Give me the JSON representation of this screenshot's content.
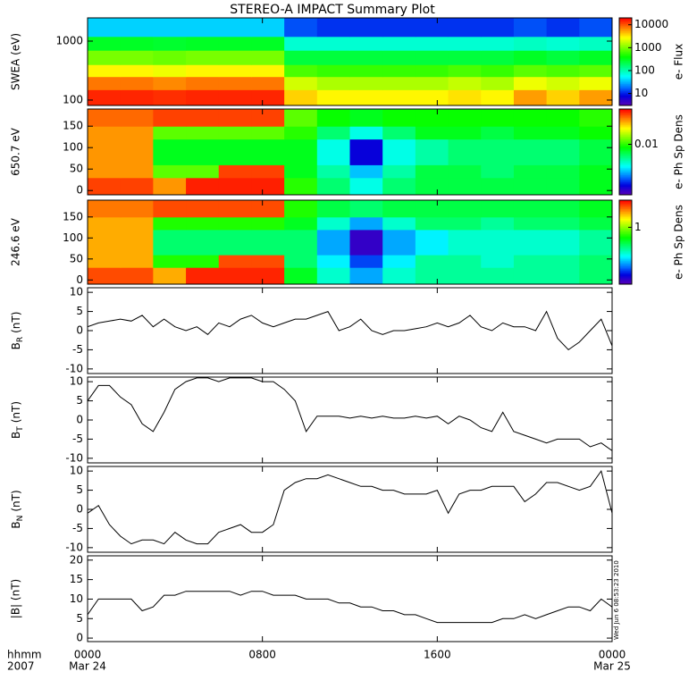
{
  "title": "STEREO-A IMPACT Summary Plot",
  "timestamp": "Wed Jun  6 08:53:23 2010",
  "x_axis": {
    "xlim": [
      0,
      24
    ],
    "xticks": [
      {
        "value": 0,
        "label": "0000"
      },
      {
        "value": 8,
        "label": "0800"
      },
      {
        "value": 16,
        "label": "1600"
      },
      {
        "value": 24,
        "label": "0000"
      }
    ],
    "row_labels": [
      "hhmm",
      "2007"
    ],
    "date_labels": [
      {
        "value": 0,
        "label": "Mar 24"
      },
      {
        "value": 24,
        "label": "Mar 25"
      }
    ]
  },
  "chart_data": [
    {
      "type": "heatmap",
      "ylabel": "SWEA (eV)",
      "ylog": true,
      "ylim": [
        81,
        2480
      ],
      "yticks": [
        100,
        1000
      ],
      "xbins": [
        0,
        1.5,
        3,
        4.5,
        6,
        7.5,
        9,
        10.5,
        12,
        13.5,
        15,
        16.5,
        18,
        19.5,
        21,
        22.5,
        24
      ],
      "ybins": [
        81,
        150,
        250,
        400,
        700,
        1200,
        2480
      ],
      "values": [
        [
          15000,
          15000,
          14000,
          15000,
          15000,
          15000,
          4000,
          3000,
          3000,
          3000,
          3000,
          3500,
          3000,
          6000,
          4000,
          6000
        ],
        [
          8000,
          8000,
          7000,
          8000,
          8000,
          8000,
          2000,
          1500,
          1500,
          1500,
          1500,
          1800,
          1500,
          2500,
          2000,
          2500
        ],
        [
          3000,
          3000,
          2500,
          3000,
          3000,
          3000,
          700,
          600,
          600,
          600,
          600,
          700,
          600,
          800,
          700,
          800
        ],
        [
          1000,
          1000,
          900,
          1000,
          1000,
          1000,
          250,
          250,
          250,
          250,
          250,
          250,
          250,
          300,
          250,
          300
        ],
        [
          300,
          300,
          280,
          300,
          300,
          300,
          80,
          80,
          80,
          80,
          80,
          80,
          80,
          90,
          80,
          90
        ],
        [
          40,
          40,
          40,
          40,
          40,
          40,
          15,
          12,
          12,
          12,
          12,
          12,
          12,
          15,
          12,
          15
        ]
      ],
      "colorbar": {
        "log": true,
        "clim": [
          3,
          20000
        ],
        "cticks": [
          10,
          100,
          1000,
          10000
        ],
        "label": "e- Flux"
      }
    },
    {
      "type": "heatmap",
      "ylabel": "650.7 eV",
      "ylog": false,
      "ylim": [
        -10,
        190
      ],
      "yticks": [
        0,
        50,
        100,
        150
      ],
      "xbins": [
        0,
        1.5,
        3,
        4.5,
        6,
        7.5,
        9,
        10.5,
        12,
        13.5,
        15,
        16.5,
        18,
        19.5,
        21,
        22.5,
        24
      ],
      "ybins": [
        -10,
        30,
        60,
        120,
        150,
        190
      ],
      "values": [
        [
          0.04,
          0.04,
          0.03,
          0.045,
          0.045,
          0.045,
          0.01,
          0.006,
          0.004,
          0.006,
          0.007,
          0.007,
          0.007,
          0.007,
          0.007,
          0.008
        ],
        [
          0.03,
          0.03,
          0.012,
          0.012,
          0.04,
          0.04,
          0.008,
          0.005,
          0.003,
          0.005,
          0.007,
          0.007,
          0.006,
          0.007,
          0.007,
          0.008
        ],
        [
          0.03,
          0.03,
          0.008,
          0.008,
          0.008,
          0.008,
          0.008,
          0.004,
          0.0015,
          0.004,
          0.005,
          0.006,
          0.006,
          0.006,
          0.006,
          0.007
        ],
        [
          0.03,
          0.03,
          0.012,
          0.012,
          0.012,
          0.012,
          0.01,
          0.006,
          0.004,
          0.006,
          0.008,
          0.008,
          0.007,
          0.008,
          0.008,
          0.009
        ],
        [
          0.035,
          0.035,
          0.04,
          0.04,
          0.04,
          0.04,
          0.012,
          0.009,
          0.008,
          0.009,
          0.009,
          0.009,
          0.009,
          0.009,
          0.009,
          0.01
        ]
      ],
      "colorbar": {
        "log": true,
        "clim": [
          0.001,
          0.05
        ],
        "cticks": [
          0.01
        ],
        "label": "e- Ph Sp Dens"
      }
    },
    {
      "type": "heatmap",
      "ylabel": "246.6 eV",
      "ylog": false,
      "ylim": [
        -10,
        190
      ],
      "yticks": [
        0,
        50,
        100,
        150
      ],
      "xbins": [
        0,
        1.5,
        3,
        4.5,
        6,
        7.5,
        9,
        10.5,
        12,
        13.5,
        15,
        16.5,
        18,
        19.5,
        21,
        22.5,
        24
      ],
      "ybins": [
        -10,
        30,
        60,
        120,
        150,
        190
      ],
      "values": [
        [
          2.4,
          2.4,
          1.8,
          2.7,
          2.7,
          2.7,
          0.6,
          0.36,
          0.24,
          0.36,
          0.42,
          0.42,
          0.42,
          0.42,
          0.42,
          0.48
        ],
        [
          1.8,
          1.8,
          0.72,
          0.72,
          2.4,
          2.4,
          0.48,
          0.3,
          0.18,
          0.3,
          0.42,
          0.42,
          0.36,
          0.42,
          0.42,
          0.48
        ],
        [
          1.8,
          1.8,
          0.48,
          0.48,
          0.48,
          0.48,
          0.48,
          0.24,
          0.12,
          0.24,
          0.3,
          0.36,
          0.36,
          0.36,
          0.36,
          0.42
        ],
        [
          1.8,
          1.8,
          0.72,
          0.72,
          0.72,
          0.72,
          0.6,
          0.36,
          0.24,
          0.36,
          0.48,
          0.48,
          0.42,
          0.48,
          0.48,
          0.54
        ],
        [
          2.1,
          2.1,
          2.4,
          2.4,
          2.4,
          2.4,
          0.72,
          0.54,
          0.48,
          0.54,
          0.54,
          0.54,
          0.54,
          0.54,
          0.54,
          0.6
        ]
      ],
      "colorbar": {
        "log": true,
        "clim": [
          0.1,
          3
        ],
        "cticks": [
          1
        ],
        "label": "e- Ph Sp Dens"
      }
    },
    {
      "type": "line",
      "ylabel": {
        "main": "B",
        "sub": "R",
        "unit": "(nT)"
      },
      "ylim": [
        -11.2,
        11.2
      ],
      "yticks": [
        -10,
        -5,
        0,
        5,
        10
      ],
      "color": "#000000",
      "x": [
        0,
        0.5,
        1,
        1.5,
        2,
        2.5,
        3,
        3.5,
        4,
        4.5,
        5,
        5.5,
        6,
        6.5,
        7,
        7.5,
        8,
        8.5,
        9,
        9.5,
        10,
        10.5,
        11,
        11.5,
        12,
        12.5,
        13,
        13.5,
        14,
        14.5,
        15,
        15.5,
        16,
        16.5,
        17,
        17.5,
        18,
        18.5,
        19,
        19.5,
        20,
        20.5,
        21,
        21.5,
        22,
        22.5,
        23,
        23.5,
        24
      ],
      "values": [
        1,
        2,
        2.5,
        3,
        2.5,
        4,
        1,
        3,
        1,
        0,
        1,
        -1,
        2,
        1,
        3,
        4,
        2,
        1,
        2,
        3,
        3,
        4,
        5,
        0,
        1,
        3,
        0,
        -1,
        0,
        0,
        0.5,
        1,
        2,
        1,
        2,
        4,
        1,
        0,
        2,
        1,
        1,
        0,
        5,
        -2,
        -5,
        -3,
        0,
        3,
        -4
      ]
    },
    {
      "type": "line",
      "ylabel": {
        "main": "B",
        "sub": "T",
        "unit": "(nT)"
      },
      "ylim": [
        -11.2,
        11.2
      ],
      "yticks": [
        -10,
        -5,
        0,
        5,
        10
      ],
      "color": "#000000",
      "x": [
        0,
        0.5,
        1,
        1.5,
        2,
        2.5,
        3,
        3.5,
        4,
        4.5,
        5,
        5.5,
        6,
        6.5,
        7,
        7.5,
        8,
        8.5,
        9,
        9.5,
        10,
        10.5,
        11,
        11.5,
        12,
        12.5,
        13,
        13.5,
        14,
        14.5,
        15,
        15.5,
        16,
        16.5,
        17,
        17.5,
        18,
        18.5,
        19,
        19.5,
        20,
        20.5,
        21,
        21.5,
        22,
        22.5,
        23,
        23.5,
        24
      ],
      "values": [
        5,
        9,
        9,
        6,
        4,
        -1,
        -3,
        2,
        8,
        10,
        11,
        11,
        10,
        11,
        11,
        11,
        10,
        10,
        8,
        5,
        -3,
        1,
        1,
        1,
        0.5,
        1,
        0.5,
        1,
        0.5,
        0.5,
        1,
        0.5,
        1,
        -1,
        1,
        0,
        -2,
        -3,
        2,
        -3,
        -4,
        -5,
        -6,
        -5,
        -5,
        -5,
        -7,
        -6,
        -8
      ]
    },
    {
      "type": "line",
      "ylabel": {
        "main": "B",
        "sub": "N",
        "unit": "(nT)"
      },
      "ylim": [
        -11.2,
        11.2
      ],
      "yticks": [
        -10,
        -5,
        0,
        5,
        10
      ],
      "color": "#000000",
      "x": [
        0,
        0.5,
        1,
        1.5,
        2,
        2.5,
        3,
        3.5,
        4,
        4.5,
        5,
        5.5,
        6,
        6.5,
        7,
        7.5,
        8,
        8.5,
        9,
        9.5,
        10,
        10.5,
        11,
        11.5,
        12,
        12.5,
        13,
        13.5,
        14,
        14.5,
        15,
        15.5,
        16,
        16.5,
        17,
        17.5,
        18,
        18.5,
        19,
        19.5,
        20,
        20.5,
        21,
        21.5,
        22,
        22.5,
        23,
        23.5,
        24
      ],
      "values": [
        -1,
        1,
        -4,
        -7,
        -9,
        -8,
        -8,
        -9,
        -6,
        -8,
        -9,
        -9,
        -6,
        -5,
        -4,
        -6,
        -6,
        -4,
        5,
        7,
        8,
        8,
        9,
        8,
        7,
        6,
        6,
        5,
        5,
        4,
        4,
        4,
        5,
        -1,
        4,
        5,
        5,
        6,
        6,
        6,
        2,
        4,
        7,
        7,
        6,
        5,
        6,
        10,
        -1
      ]
    },
    {
      "type": "line",
      "ylabel": "|B| (nT)",
      "ylim": [
        -0.9,
        21.1
      ],
      "yticks": [
        0,
        5,
        10,
        15,
        20
      ],
      "color": "#000000",
      "x": [
        0,
        0.5,
        1,
        1.5,
        2,
        2.5,
        3,
        3.5,
        4,
        4.5,
        5,
        5.5,
        6,
        6.5,
        7,
        7.5,
        8,
        8.5,
        9,
        9.5,
        10,
        10.5,
        11,
        11.5,
        12,
        12.5,
        13,
        13.5,
        14,
        14.5,
        15,
        15.5,
        16,
        16.5,
        17,
        17.5,
        18,
        18.5,
        19,
        19.5,
        20,
        20.5,
        21,
        21.5,
        22,
        22.5,
        23,
        23.5,
        24
      ],
      "values": [
        6,
        10,
        10,
        10,
        10,
        7,
        8,
        11,
        11,
        12,
        12,
        12,
        12,
        12,
        11,
        12,
        12,
        11,
        11,
        11,
        10,
        10,
        10,
        9,
        9,
        8,
        8,
        7,
        7,
        6,
        6,
        5,
        4,
        4,
        4,
        4,
        4,
        4,
        5,
        5,
        6,
        5,
        6,
        7,
        8,
        8,
        7,
        10,
        8
      ]
    }
  ]
}
